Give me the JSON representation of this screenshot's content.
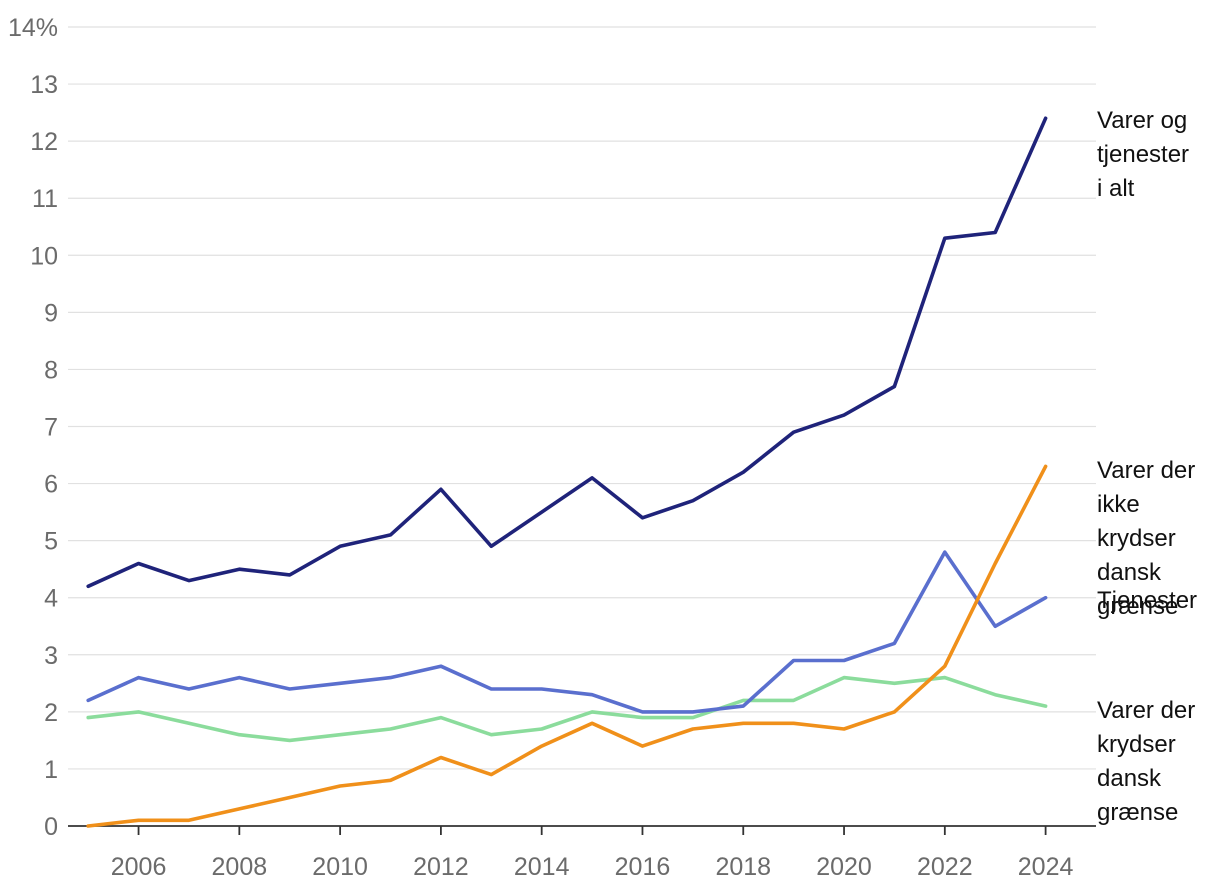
{
  "chart_data": {
    "type": "line",
    "title": "",
    "xlabel": "",
    "ylabel": "",
    "y_unit_label": "14%",
    "x": [
      2005,
      2006,
      2007,
      2008,
      2009,
      2010,
      2011,
      2012,
      2013,
      2014,
      2015,
      2016,
      2017,
      2018,
      2019,
      2020,
      2021,
      2022,
      2023,
      2024
    ],
    "xlim": [
      2004.6,
      2025.0
    ],
    "ylim": [
      0,
      14
    ],
    "x_ticks": [
      "2006",
      "2008",
      "2010",
      "2012",
      "2014",
      "2016",
      "2018",
      "2020",
      "2022",
      "2024"
    ],
    "y_ticks": [
      "0",
      "1",
      "2",
      "3",
      "4",
      "5",
      "6",
      "7",
      "8",
      "9",
      "10",
      "11",
      "12",
      "13",
      "14%"
    ],
    "grid": "horizontal",
    "legend": "direct labels at right end of lines",
    "series": [
      {
        "name": "Varer og tjenester i alt",
        "label_lines": [
          "Varer og",
          "tjenester",
          "i alt"
        ],
        "color": "#1f237a",
        "values": [
          4.2,
          4.6,
          4.3,
          4.5,
          4.4,
          4.9,
          5.1,
          5.9,
          4.9,
          5.5,
          6.1,
          5.4,
          5.7,
          6.2,
          6.9,
          7.2,
          7.7,
          10.3,
          10.4,
          12.4
        ]
      },
      {
        "name": "Varer der ikke krydser dansk grænse",
        "label_lines": [
          "Varer der",
          "ikke",
          "krydser",
          "dansk",
          "grænse"
        ],
        "color": "#f0901a",
        "values": [
          0.0,
          0.1,
          0.1,
          0.3,
          0.5,
          0.7,
          0.8,
          1.2,
          0.9,
          1.4,
          1.8,
          1.4,
          1.7,
          1.8,
          1.8,
          1.7,
          2.0,
          2.8,
          4.6,
          6.3
        ]
      },
      {
        "name": "Tjenester",
        "label_lines": [
          "Tjenester"
        ],
        "color": "#5a6fce",
        "values": [
          2.2,
          2.6,
          2.4,
          2.6,
          2.4,
          2.5,
          2.6,
          2.8,
          2.4,
          2.4,
          2.3,
          2.0,
          2.0,
          2.1,
          2.9,
          2.9,
          3.2,
          4.8,
          3.5,
          4.0
        ]
      },
      {
        "name": "Varer der krydser dansk grænse",
        "label_lines": [
          "Varer der",
          "krydser",
          "dansk",
          "grænse"
        ],
        "color": "#8bdc9c",
        "values": [
          1.9,
          2.0,
          1.8,
          1.6,
          1.5,
          1.6,
          1.7,
          1.9,
          1.6,
          1.7,
          2.0,
          1.9,
          1.9,
          2.2,
          2.2,
          2.6,
          2.5,
          2.6,
          2.3,
          2.1
        ]
      }
    ]
  }
}
